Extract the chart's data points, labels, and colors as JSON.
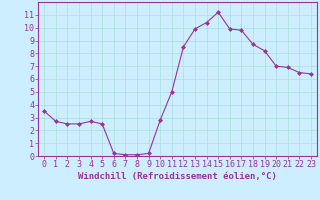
{
  "x": [
    0,
    1,
    2,
    3,
    4,
    5,
    6,
    7,
    8,
    9,
    10,
    11,
    12,
    13,
    14,
    15,
    16,
    17,
    18,
    19,
    20,
    21,
    22,
    23
  ],
  "y": [
    3.5,
    2.7,
    2.5,
    2.5,
    2.7,
    2.5,
    0.2,
    0.1,
    0.1,
    0.2,
    2.8,
    5.0,
    8.5,
    9.9,
    10.4,
    11.2,
    9.9,
    9.8,
    8.7,
    8.2,
    7.0,
    6.9,
    6.5,
    6.4
  ],
  "line_color": "#993399",
  "marker": "D",
  "marker_size": 2,
  "bg_color": "#cceeff",
  "grid_color": "#aadddd",
  "xlabel": "Windchill (Refroidissement éolien,°C)",
  "xlabel_color": "#993399",
  "tick_color": "#993399",
  "spine_color": "#993399",
  "xlim": [
    -0.5,
    23.5
  ],
  "ylim": [
    0,
    12
  ],
  "yticks": [
    0,
    1,
    2,
    3,
    4,
    5,
    6,
    7,
    8,
    9,
    10,
    11
  ],
  "xticks": [
    0,
    1,
    2,
    3,
    4,
    5,
    6,
    7,
    8,
    9,
    10,
    11,
    12,
    13,
    14,
    15,
    16,
    17,
    18,
    19,
    20,
    21,
    22,
    23
  ],
  "tick_fontsize": 6,
  "xlabel_fontsize": 6.5
}
